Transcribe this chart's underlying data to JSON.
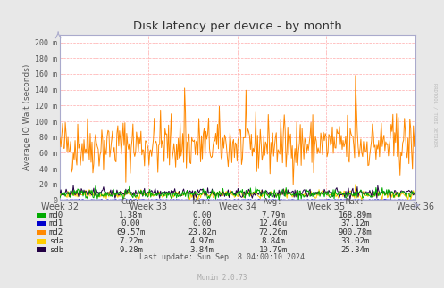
{
  "title": "Disk latency per device - by month",
  "ylabel": "Average IO Wait (seconds)",
  "x_labels": [
    "Week 32",
    "Week 33",
    "Week 34",
    "Week 35",
    "Week 36"
  ],
  "y_ticks": [
    0,
    20,
    40,
    60,
    80,
    100,
    120,
    140,
    160,
    180,
    200
  ],
  "y_tick_labels": [
    "0",
    "20 m",
    "40 m",
    "60 m",
    "80 m",
    "100 m",
    "120 m",
    "140 m",
    "160 m",
    "180 m",
    "200 m"
  ],
  "ylim": [
    0,
    210
  ],
  "bg_color": "#e8e8e8",
  "plot_bg_color": "#ffffff",
  "grid_color": "#ffaaaa",
  "title_color": "#333333",
  "rrdtool_text": "RRDTOOL / TOBI OETIKER",
  "munin_text": "Munin 2.0.73",
  "last_update": "Last update: Sun Sep  8 04:00:10 2024",
  "legend": [
    {
      "label": "md0",
      "color": "#00aa00"
    },
    {
      "label": "md1",
      "color": "#0000cc"
    },
    {
      "label": "md2",
      "color": "#ff8800"
    },
    {
      "label": "sda",
      "color": "#ffcc00"
    },
    {
      "label": "sdb",
      "color": "#220044"
    }
  ],
  "legend_stats": [
    {
      "name": "md0",
      "cur": "1.38m",
      "min": "0.00",
      "avg": "7.79m",
      "max": "168.89m"
    },
    {
      "name": "md1",
      "cur": "0.00",
      "min": "0.00",
      "avg": "12.46u",
      "max": "37.12m"
    },
    {
      "name": "md2",
      "cur": "69.57m",
      "min": "23.82m",
      "avg": "72.26m",
      "max": "900.78m"
    },
    {
      "name": "sda",
      "cur": "7.22m",
      "min": "4.97m",
      "avg": "8.84m",
      "max": "33.02m"
    },
    {
      "name": "sdb",
      "cur": "9.28m",
      "min": "3.84m",
      "avg": "10.79m",
      "max": "25.34m"
    }
  ],
  "num_points": 400
}
